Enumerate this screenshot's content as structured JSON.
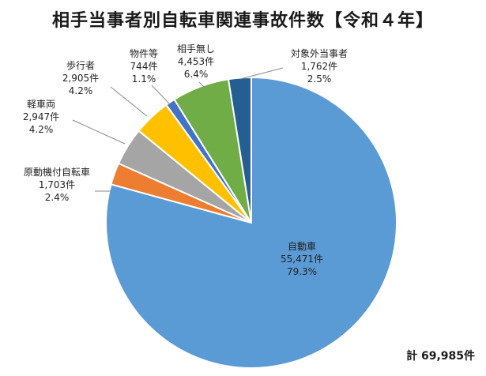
{
  "chart_data": {
    "type": "pie",
    "title": "相手当事者別自転車関連事故件数【令和４年】",
    "total_label": "計 69,985件",
    "slices": [
      {
        "name": "自動車",
        "value_text": "55,471件",
        "percent_text": "79.3%",
        "value": 55471,
        "color": "#5b9bd5"
      },
      {
        "name": "原動機付自転車",
        "value_text": "1,703件",
        "percent_text": "2.4%",
        "value": 1703,
        "color": "#ed7d31"
      },
      {
        "name": "軽車両",
        "value_text": "2,947件",
        "percent_text": "4.2%",
        "value": 2947,
        "color": "#a5a5a5"
      },
      {
        "name": "歩行者",
        "value_text": "2,905件",
        "percent_text": "4.2%",
        "value": 2905,
        "color": "#ffc000"
      },
      {
        "name": "物件等",
        "value_text": "744件",
        "percent_text": "1.1%",
        "value": 744,
        "color": "#4472c4"
      },
      {
        "name": "相手無し",
        "value_text": "4,453件",
        "percent_text": "6.4%",
        "value": 4453,
        "color": "#70ad47"
      },
      {
        "name": "対象外当事者",
        "value_text": "1,762件",
        "percent_text": "2.5%",
        "value": 1762,
        "color": "#255e91"
      }
    ]
  }
}
